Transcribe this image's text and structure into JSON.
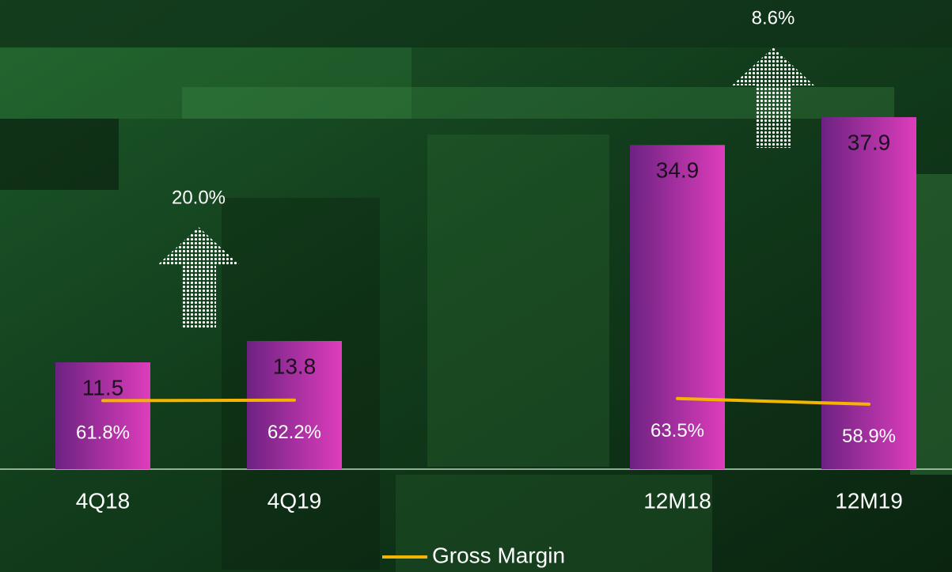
{
  "chart_data": {
    "type": "bar",
    "categories": [
      "4Q18",
      "4Q19",
      null,
      "12M18",
      "12M19"
    ],
    "values": [
      11.5,
      13.8,
      null,
      34.9,
      37.9
    ],
    "colors": [
      "#6c2282",
      "#de3dbb"
    ],
    "ylim": [
      0,
      50
    ],
    "y2lim": [
      5,
      390
    ],
    "lines": [
      {
        "name": "Gross Margin",
        "color": "#f5b400",
        "axis": "y2",
        "values": [
          61.8,
          62.2,
          null,
          63.5,
          58.9
        ],
        "value_labels": [
          "61.8%",
          "62.2%",
          null,
          "63.5%",
          "58.9%"
        ]
      }
    ],
    "annotations": [
      {
        "label": "20.0%",
        "from": 0,
        "to": 1
      },
      {
        "label": "8.6%",
        "from": 3,
        "to": 4
      }
    ],
    "legend": "bottom"
  }
}
